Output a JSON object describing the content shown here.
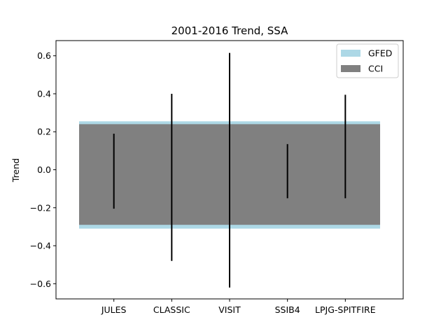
{
  "chart_data": {
    "type": "bar",
    "title": "2001-2016 Trend, SSA",
    "xlabel": "",
    "ylabel": "Trend",
    "xlim": [
      -1,
      5
    ],
    "ylim": [
      -0.68,
      0.68
    ],
    "yticks": [
      -0.6,
      -0.4,
      -0.2,
      0.0,
      0.2,
      0.4,
      0.6
    ],
    "ytick_labels": [
      "−0.6",
      "−0.4",
      "−0.2",
      "0.0",
      "0.2",
      "0.4",
      "0.6"
    ],
    "categories": [
      "JULES",
      "CLASSIC",
      "VISIT",
      "SSIB4",
      "LPJG-SPITFIRE"
    ],
    "category_positions": [
      0,
      1,
      2,
      3,
      4
    ],
    "ranges": [
      {
        "name": "JULES",
        "low": -0.205,
        "high": 0.19
      },
      {
        "name": "CLASSIC",
        "low": -0.48,
        "high": 0.4
      },
      {
        "name": "VISIT",
        "low": -0.62,
        "high": 0.615
      },
      {
        "name": "SSIB4",
        "low": -0.15,
        "high": 0.135
      },
      {
        "name": "LPJG-SPITFIRE",
        "low": -0.15,
        "high": 0.395
      }
    ],
    "bands": [
      {
        "name": "GFED",
        "low": -0.31,
        "high": 0.255,
        "x_start": -1,
        "x_end": 5,
        "color": "#add8e6"
      },
      {
        "name": "CCI",
        "low": -0.29,
        "high": 0.24,
        "x_start": -1,
        "x_end": 5,
        "color": "#808080"
      }
    ],
    "range_color": "#000000",
    "legend": {
      "position": "top-right",
      "entries": [
        "GFED",
        "CCI"
      ]
    },
    "grid": false
  }
}
